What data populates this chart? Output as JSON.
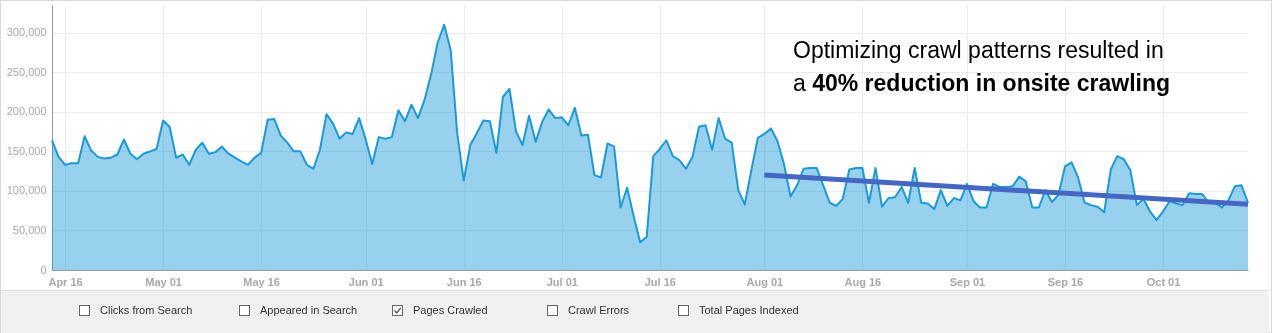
{
  "chart_data": {
    "type": "area",
    "xlim": [
      "--04-14",
      "--10-14"
    ],
    "ylim": [
      0,
      335000
    ],
    "xticks": [
      {
        "value": "--04-16",
        "label": "Apr 16"
      },
      {
        "value": "--05-01",
        "label": "May 01"
      },
      {
        "value": "--05-16",
        "label": "May 16"
      },
      {
        "value": "--06-01",
        "label": "Jun 01"
      },
      {
        "value": "--06-16",
        "label": "Jun 16"
      },
      {
        "value": "--07-01",
        "label": "Jul 01"
      },
      {
        "value": "--07-16",
        "label": "Jul 16"
      },
      {
        "value": "--08-01",
        "label": "Aug 01"
      },
      {
        "value": "--08-16",
        "label": "Aug 16"
      },
      {
        "value": "--09-01",
        "label": "Sep 01"
      },
      {
        "value": "--09-16",
        "label": "Sep 16"
      },
      {
        "value": "--10-01",
        "label": "Oct 01"
      }
    ],
    "yticks": [
      0,
      {
        "value": 50000,
        "label": "50,000"
      },
      {
        "value": 100000,
        "label": "100,000"
      },
      {
        "value": 150000,
        "label": "150,000"
      },
      {
        "value": 200000,
        "label": "200,000"
      },
      {
        "value": 250000,
        "label": "250,000"
      },
      {
        "value": 300000,
        "label": "300,000"
      }
    ],
    "grid": true,
    "legend": "bottom",
    "annotations": [
      "Optimizing crawl patterns resulted in",
      "a",
      "40% reduction in onsite crawling",
      "Clicks from Search",
      "Appeared in Search",
      "Crawl Errors",
      "Total Pages Indexed"
    ],
    "series": [
      {
        "name": "Pages Crawled",
        "type": "area",
        "color": "#1b9ad7",
        "x": [
          "--04-14",
          "--04-15",
          "--04-16",
          "--04-17",
          "--04-18",
          "--04-19",
          "--04-20",
          "--04-21",
          "--04-22",
          "--04-23",
          "--04-24",
          "--04-25",
          "--04-26",
          "--04-27",
          "--04-28",
          "--04-29",
          "--04-30",
          "--05-01",
          "--05-02",
          "--05-03",
          "--05-04",
          "--05-05",
          "--05-06",
          "--05-07",
          "--05-08",
          "--05-09",
          "--05-10",
          "--05-11",
          "--05-12",
          "--05-13",
          "--05-14",
          "--05-15",
          "--05-16",
          "--05-17",
          "--05-18",
          "--05-19",
          "--05-20",
          "--05-21",
          "--05-22",
          "--05-23",
          "--05-24",
          "--05-25",
          "--05-26",
          "--05-27",
          "--05-28",
          "--05-29",
          "--05-30",
          "--05-31",
          "--06-01",
          "--06-02",
          "--06-03",
          "--06-04",
          "--06-05",
          "--06-06",
          "--06-07",
          "--06-08",
          "--06-09",
          "--06-10",
          "--06-11",
          "--06-12",
          "--06-13",
          "--06-14",
          "--06-15",
          "--06-16",
          "--06-17",
          "--06-18",
          "--06-19",
          "--06-20",
          "--06-21",
          "--06-22",
          "--06-23",
          "--06-24",
          "--06-25",
          "--06-26",
          "--06-27",
          "--06-28",
          "--06-29",
          "--06-30",
          "--07-01",
          "--07-02",
          "--07-03",
          "--07-04",
          "--07-05",
          "--07-06",
          "--07-07",
          "--07-08",
          "--07-09",
          "--07-10",
          "--07-11",
          "--07-12",
          "--07-13",
          "--07-14",
          "--07-15",
          "--07-16",
          "--07-17",
          "--07-18",
          "--07-19",
          "--07-20",
          "--07-21",
          "--07-22",
          "--07-23",
          "--07-24",
          "--07-25",
          "--07-26",
          "--07-27",
          "--07-28",
          "--07-29",
          "--07-30",
          "--07-31",
          "--08-01",
          "--08-02",
          "--08-03",
          "--08-04",
          "--08-05",
          "--08-06",
          "--08-07",
          "--08-08",
          "--08-09",
          "--08-10",
          "--08-11",
          "--08-12",
          "--08-13",
          "--08-14",
          "--08-15",
          "--08-16",
          "--08-17",
          "--08-18",
          "--08-19",
          "--08-20",
          "--08-21",
          "--08-22",
          "--08-23",
          "--08-24",
          "--08-25",
          "--08-26",
          "--08-27",
          "--08-28",
          "--08-29",
          "--08-30",
          "--08-31",
          "--09-01",
          "--09-02",
          "--09-03",
          "--09-04",
          "--09-05",
          "--09-06",
          "--09-07",
          "--09-08",
          "--09-09",
          "--09-10",
          "--09-11",
          "--09-12",
          "--09-13",
          "--09-14",
          "--09-15",
          "--09-16",
          "--09-17",
          "--09-18",
          "--09-19",
          "--09-20",
          "--09-21",
          "--09-22",
          "--09-23",
          "--09-24",
          "--09-25",
          "--09-26",
          "--09-27",
          "--09-28",
          "--09-29",
          "--09-30",
          "--10-01",
          "--10-02",
          "--10-03",
          "--10-04",
          "--10-05",
          "--10-06",
          "--10-07",
          "--10-08",
          "--10-09",
          "--10-10",
          "--10-11",
          "--10-12",
          "--10-13",
          "--10-14"
        ],
        "values": [
          164000,
          143000,
          133000,
          135000,
          135000,
          169000,
          151000,
          143000,
          141000,
          142000,
          146000,
          165000,
          147000,
          140000,
          147000,
          150000,
          153000,
          189000,
          181000,
          142000,
          146000,
          133000,
          152000,
          161000,
          147000,
          149000,
          156000,
          147000,
          142000,
          137000,
          133000,
          142000,
          148000,
          190000,
          191000,
          170000,
          161000,
          150000,
          150000,
          133000,
          128000,
          152000,
          197000,
          185000,
          166000,
          174000,
          172000,
          192000,
          165000,
          134000,
          168000,
          166000,
          168000,
          202000,
          188000,
          209000,
          192000,
          215000,
          247000,
          287000,
          310000,
          278000,
          173000,
          113000,
          158000,
          173000,
          189000,
          188000,
          148000,
          219000,
          229000,
          175000,
          158000,
          195000,
          162000,
          187000,
          203000,
          192000,
          193000,
          183000,
          205000,
          170000,
          171000,
          120000,
          117000,
          160000,
          156000,
          79000,
          104000,
          68000,
          35000,
          42000,
          144000,
          153000,
          164000,
          144000,
          139000,
          128000,
          143000,
          181000,
          183000,
          152000,
          192000,
          166000,
          161000,
          101000,
          83000,
          126000,
          167000,
          172000,
          179000,
          163000,
          134000,
          93000,
          107000,
          128000,
          129000,
          129000,
          107000,
          85000,
          81000,
          90000,
          127000,
          129000,
          129000,
          85000,
          129000,
          80000,
          91000,
          92000,
          105000,
          85000,
          129000,
          85000,
          84000,
          77000,
          101000,
          81000,
          91000,
          88000,
          109000,
          87000,
          79000,
          79000,
          109000,
          105000,
          105000,
          106000,
          118000,
          112000,
          79000,
          79000,
          101000,
          86000,
          95000,
          131000,
          136000,
          117000,
          85000,
          82000,
          80000,
          73000,
          127000,
          144000,
          140000,
          126000,
          82000,
          90000,
          74000,
          63000,
          74000,
          87000,
          84000,
          82000,
          97000,
          96000,
          96000,
          85000,
          85000,
          79000,
          88000,
          106000,
          107000,
          85000
        ]
      },
      {
        "type": "line",
        "color": "#4468c2",
        "x": [
          "--08-01",
          "--10-14"
        ],
        "values": [
          120000,
          83000
        ]
      }
    ]
  }
}
